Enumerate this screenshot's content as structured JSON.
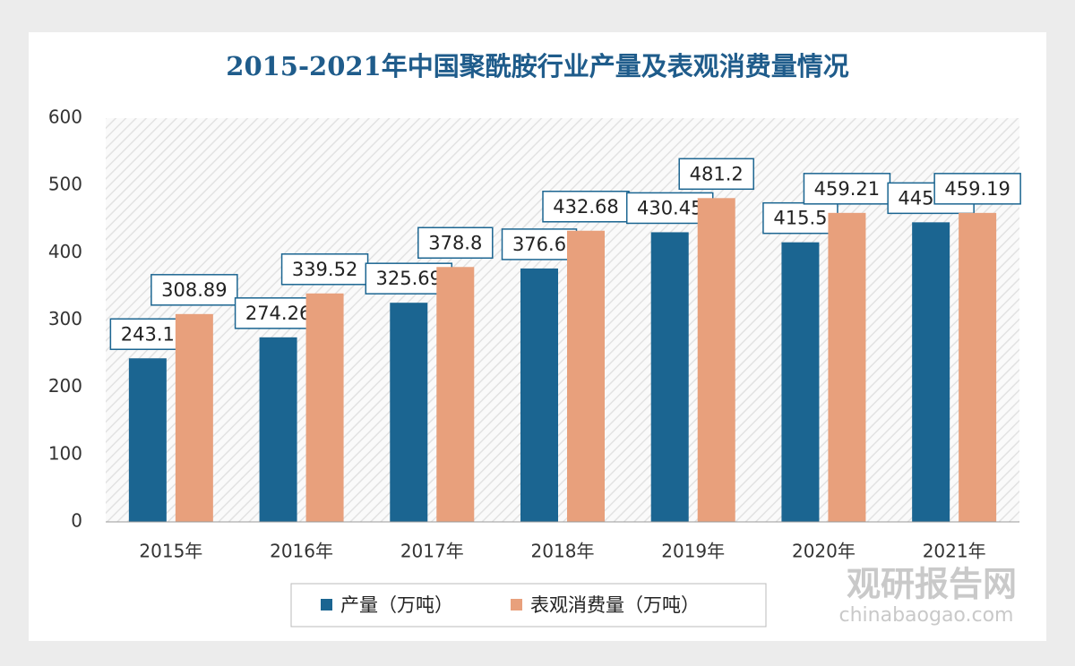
{
  "chart_data": {
    "type": "bar",
    "title": "2015-2021年中国聚酰胺行业产量及表观消费量情况",
    "categories": [
      "2015年",
      "2016年",
      "2017年",
      "2018年",
      "2019年",
      "2020年",
      "2021年"
    ],
    "series": [
      {
        "name": "产量（万吨）",
        "color": "#1b6591",
        "values": [
          243.1,
          274.26,
          325.69,
          376.6,
          430.45,
          415.5,
          445.21
        ]
      },
      {
        "name": "表观消费量（万吨）",
        "color": "#e8a07c",
        "values": [
          308.89,
          339.52,
          378.8,
          432.68,
          481.2,
          459.21,
          459.19
        ]
      }
    ],
    "ylim": [
      0,
      600
    ],
    "yticks": [
      0,
      100,
      200,
      300,
      400,
      500,
      600
    ],
    "grid": false,
    "legend": "bottom"
  },
  "watermark": {
    "name": "观研报告网",
    "url": "chinabaogao.com"
  }
}
